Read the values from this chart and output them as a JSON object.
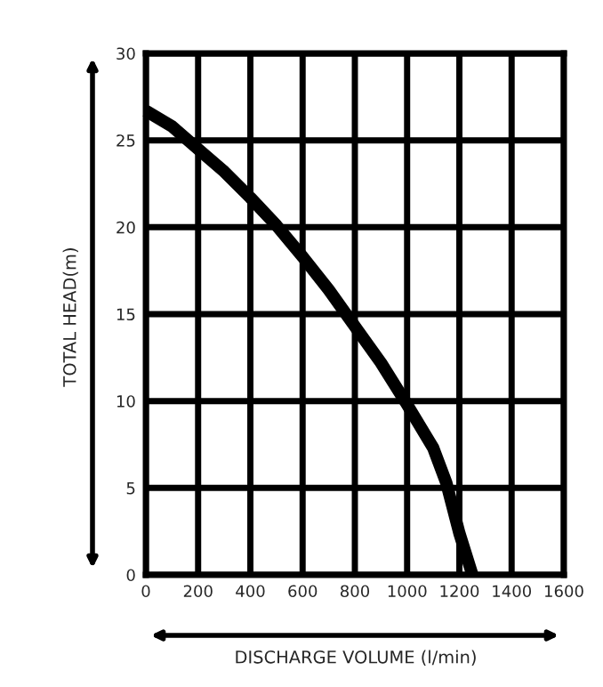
{
  "chart_data": {
    "type": "line",
    "xlabel": "DISCHARGE VOLUME (l/min)",
    "ylabel": "TOTAL HEAD(m)",
    "x": [
      0,
      100,
      200,
      300,
      400,
      500,
      600,
      700,
      800,
      900,
      1000,
      1100,
      1150,
      1200,
      1250
    ],
    "series": [
      {
        "color": "#000000",
        "values": [
          26.7,
          25.8,
          24.5,
          23.2,
          21.7,
          20.1,
          18.3,
          16.4,
          14.3,
          12.2,
          9.8,
          7.3,
          5.3,
          2.4,
          0
        ]
      }
    ],
    "xlim": [
      0,
      1600
    ],
    "xticks": [
      0,
      200,
      400,
      600,
      800,
      1000,
      1200,
      1400,
      1600
    ],
    "ylim": [
      0,
      30
    ],
    "yticks": [
      0,
      5,
      10,
      15,
      20,
      25,
      30
    ],
    "grid": true,
    "marker": "none",
    "line_style": "solid"
  }
}
